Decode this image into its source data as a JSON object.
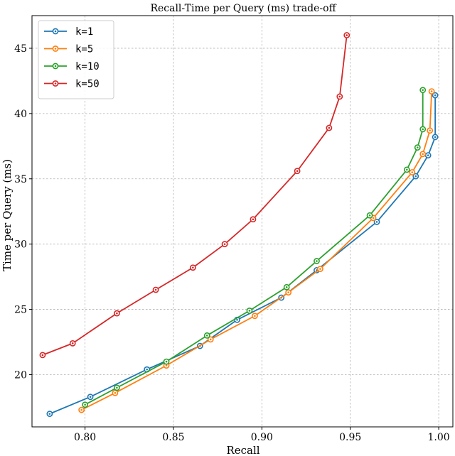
{
  "chart_data": {
    "type": "line",
    "title": "Recall-Time per Query (ms) trade-off",
    "xlabel": "Recall",
    "ylabel": "Time per Query (ms)",
    "xlim": [
      0.77,
      1.008
    ],
    "ylim": [
      16.0,
      47.5
    ],
    "xticks": [
      0.8,
      0.85,
      0.9,
      0.95,
      1.0
    ],
    "xtick_labels": [
      "0.80",
      "0.85",
      "0.90",
      "0.95",
      "1.00"
    ],
    "yticks": [
      20,
      25,
      30,
      35,
      40,
      45
    ],
    "ytick_labels": [
      "20",
      "25",
      "30",
      "35",
      "40",
      "45"
    ],
    "grid": true,
    "legend_position": "top-left",
    "series": [
      {
        "name": "k=1",
        "color": "#1f77b4",
        "x": [
          0.78,
          0.803,
          0.835,
          0.865,
          0.886,
          0.911,
          0.931,
          0.965,
          0.987,
          0.994,
          0.998,
          0.998
        ],
        "y": [
          17.0,
          18.3,
          20.4,
          22.2,
          24.2,
          25.9,
          28.0,
          31.7,
          35.2,
          36.8,
          38.2,
          41.4
        ]
      },
      {
        "name": "k=5",
        "color": "#ff7f0e",
        "x": [
          0.798,
          0.817,
          0.846,
          0.871,
          0.896,
          0.915,
          0.933,
          0.963,
          0.985,
          0.991,
          0.995,
          0.996
        ],
        "y": [
          17.3,
          18.6,
          20.7,
          22.7,
          24.5,
          26.3,
          28.1,
          32.0,
          35.5,
          36.9,
          38.7,
          41.7
        ]
      },
      {
        "name": "k=10",
        "color": "#2ca02c",
        "x": [
          0.8,
          0.818,
          0.846,
          0.869,
          0.893,
          0.914,
          0.931,
          0.961,
          0.982,
          0.988,
          0.991,
          0.991
        ],
        "y": [
          17.7,
          19.0,
          21.0,
          23.0,
          24.9,
          26.7,
          28.7,
          32.2,
          35.7,
          37.4,
          38.8,
          41.8
        ]
      },
      {
        "name": "k=50",
        "color": "#d62728",
        "x": [
          0.776,
          0.793,
          0.818,
          0.84,
          0.861,
          0.879,
          0.895,
          0.92,
          0.938,
          0.944,
          0.948
        ],
        "y": [
          21.5,
          22.4,
          24.7,
          26.5,
          28.2,
          30.0,
          31.9,
          35.6,
          38.9,
          41.3,
          46.0
        ]
      }
    ]
  }
}
